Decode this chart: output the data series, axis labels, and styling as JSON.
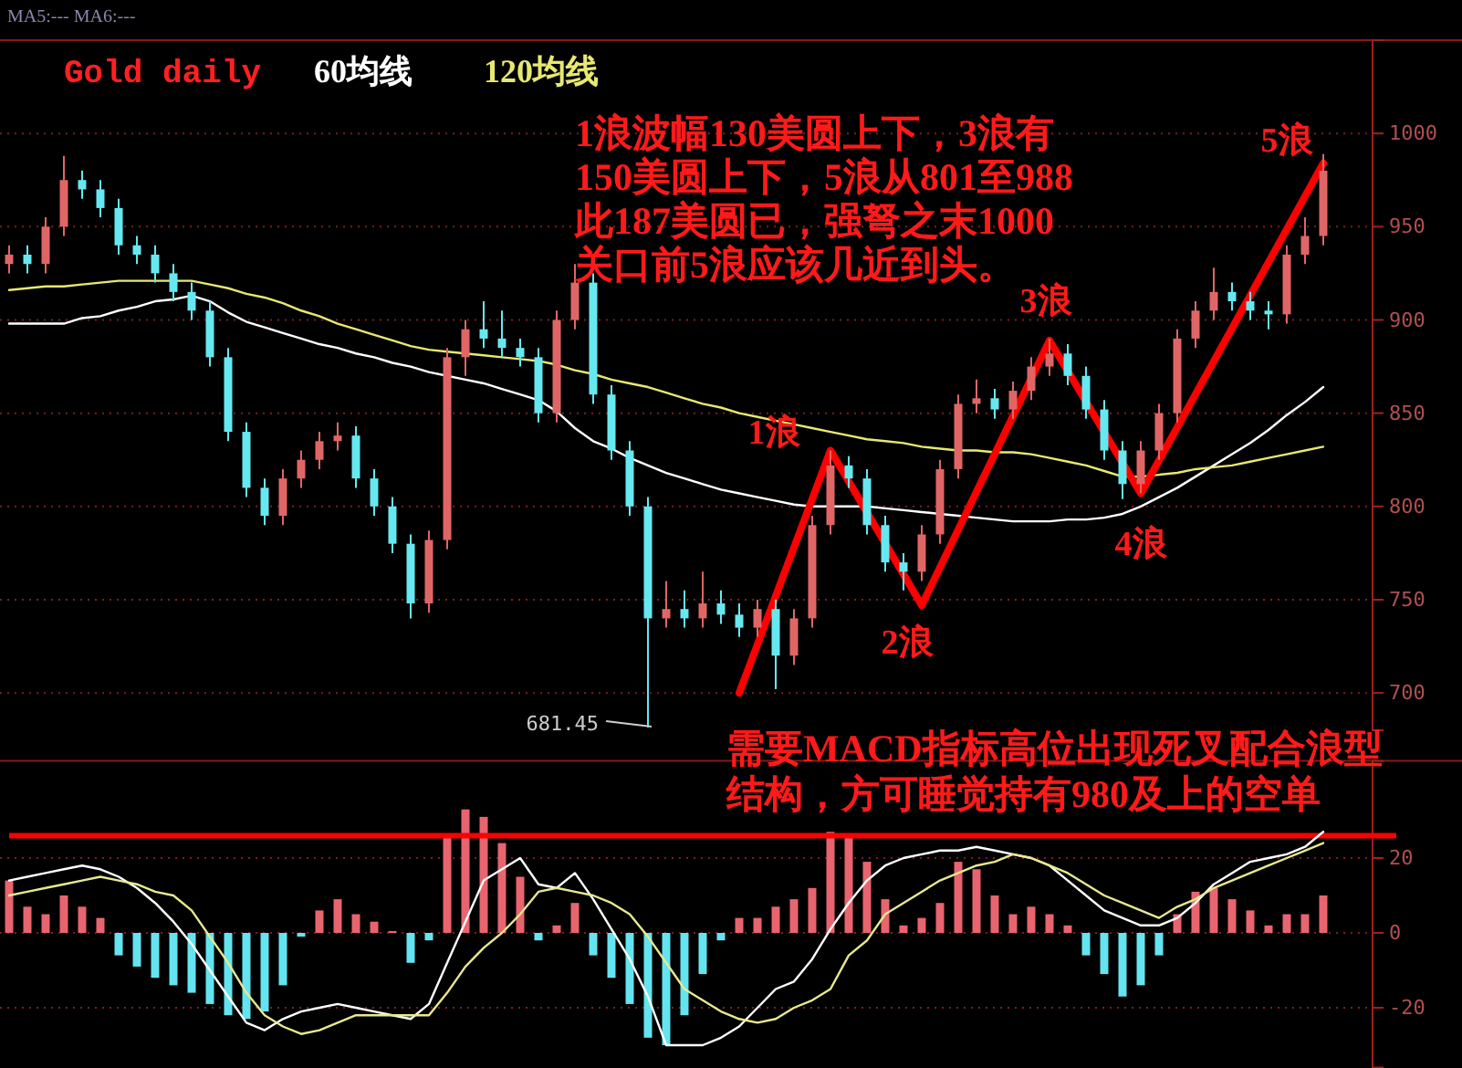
{
  "chart_data": [
    {
      "type": "candlestick",
      "title": "Gold daily",
      "grid": "y",
      "tick_labels": "y",
      "categories": [
        null,
        null,
        null,
        null,
        null,
        null,
        null,
        null,
        null,
        null,
        null,
        null,
        null,
        null,
        null,
        null,
        null,
        null,
        null,
        null,
        null,
        null,
        null,
        null,
        null,
        null,
        null,
        null,
        null,
        null,
        null,
        null,
        null,
        null,
        null,
        null,
        null,
        null,
        null,
        null,
        null,
        null,
        null,
        null,
        null,
        null,
        null,
        null,
        null,
        null,
        null,
        null,
        null,
        null,
        null,
        null,
        null,
        null,
        null,
        null,
        null,
        null,
        null,
        null,
        null,
        null,
        null,
        null,
        null,
        null,
        null,
        null,
        null
      ],
      "ylim": [
        680,
        1050
      ],
      "yticks": [
        700,
        750,
        800,
        850,
        900,
        950,
        1000
      ],
      "ohlc": [
        [
          930,
          940,
          925,
          935
        ],
        [
          935,
          940,
          925,
          930
        ],
        [
          930,
          955,
          925,
          950
        ],
        [
          950,
          988,
          945,
          975
        ],
        [
          975,
          980,
          965,
          970
        ],
        [
          970,
          975,
          955,
          960
        ],
        [
          960,
          965,
          935,
          940
        ],
        [
          940,
          945,
          930,
          935
        ],
        [
          935,
          940,
          920,
          925
        ],
        [
          925,
          930,
          910,
          915
        ],
        [
          915,
          920,
          900,
          905
        ],
        [
          905,
          910,
          875,
          880
        ],
        [
          880,
          885,
          835,
          840
        ],
        [
          840,
          845,
          805,
          810
        ],
        [
          810,
          815,
          790,
          795
        ],
        [
          795,
          820,
          790,
          815
        ],
        [
          815,
          830,
          810,
          825
        ],
        [
          825,
          840,
          820,
          835
        ],
        [
          835,
          845,
          830,
          838
        ],
        [
          838,
          843,
          810,
          815
        ],
        [
          815,
          820,
          795,
          800
        ],
        [
          800,
          805,
          775,
          780
        ],
        [
          780,
          785,
          740,
          748
        ],
        [
          748,
          787,
          743,
          782
        ],
        [
          782,
          885,
          777,
          880
        ],
        [
          880,
          900,
          870,
          895
        ],
        [
          895,
          910,
          885,
          890
        ],
        [
          890,
          905,
          880,
          885
        ],
        [
          885,
          890,
          875,
          880
        ],
        [
          880,
          885,
          845,
          850
        ],
        [
          850,
          905,
          845,
          900
        ],
        [
          900,
          930,
          895,
          920
        ],
        [
          920,
          925,
          855,
          860
        ],
        [
          860,
          865,
          825,
          830
        ],
        [
          830,
          835,
          795,
          800
        ],
        [
          800,
          805,
          681.45,
          740
        ],
        [
          740,
          760,
          735,
          745
        ],
        [
          745,
          755,
          735,
          740
        ],
        [
          740,
          765,
          735,
          748
        ],
        [
          748,
          755,
          737,
          742
        ],
        [
          742,
          748,
          730,
          735
        ],
        [
          735,
          750,
          730,
          745
        ],
        [
          745,
          750,
          702,
          720
        ],
        [
          720,
          745,
          715,
          740
        ],
        [
          740,
          795,
          735,
          790
        ],
        [
          790,
          830,
          785,
          822
        ],
        [
          822,
          827,
          810,
          815
        ],
        [
          815,
          820,
          785,
          790
        ],
        [
          790,
          795,
          765,
          770
        ],
        [
          770,
          775,
          755,
          765
        ],
        [
          765,
          790,
          760,
          785
        ],
        [
          785,
          825,
          780,
          820
        ],
        [
          820,
          860,
          815,
          855
        ],
        [
          855,
          868,
          850,
          858
        ],
        [
          858,
          863,
          847,
          852
        ],
        [
          852,
          867,
          847,
          862
        ],
        [
          862,
          880,
          857,
          875
        ],
        [
          875,
          890,
          870,
          882
        ],
        [
          882,
          887,
          865,
          870
        ],
        [
          870,
          875,
          847,
          852
        ],
        [
          852,
          857,
          825,
          830
        ],
        [
          830,
          835,
          804,
          812
        ],
        [
          812,
          835,
          807,
          830
        ],
        [
          830,
          855,
          825,
          850
        ],
        [
          850,
          895,
          845,
          890
        ],
        [
          890,
          910,
          885,
          905
        ],
        [
          905,
          928,
          900,
          915
        ],
        [
          915,
          920,
          905,
          910
        ],
        [
          910,
          915,
          900,
          905
        ],
        [
          905,
          910,
          895,
          903
        ],
        [
          903,
          940,
          898,
          935
        ],
        [
          935,
          955,
          930,
          945
        ],
        [
          945,
          989,
          940,
          980
        ]
      ],
      "series": [
        {
          "name": "60均线",
          "type": "line",
          "color": "#ffffff",
          "values": [
            898,
            898,
            898,
            898,
            901,
            902,
            905,
            907,
            910,
            911,
            913,
            910,
            904,
            899,
            896,
            893,
            890,
            887,
            885,
            882,
            880,
            877,
            875,
            872,
            870,
            868,
            866,
            863,
            860,
            857,
            851,
            842,
            835,
            831,
            826,
            822,
            818,
            815,
            812,
            809,
            807,
            805,
            803,
            801,
            800,
            800,
            800,
            800,
            799,
            798,
            797,
            796,
            795,
            794,
            793,
            792,
            792,
            792,
            793,
            793,
            794,
            796,
            800,
            805,
            810,
            816,
            822,
            828,
            834,
            841,
            849,
            856,
            864
          ]
        },
        {
          "name": "120均线",
          "type": "line",
          "color": "#e8e870",
          "values": [
            916,
            917,
            918,
            918,
            919,
            920,
            921,
            921,
            921,
            921,
            921,
            919,
            917,
            914,
            912,
            909,
            905,
            902,
            898,
            895,
            892,
            889,
            886,
            884,
            883,
            882,
            881,
            880,
            879,
            878,
            876,
            873,
            871,
            868,
            866,
            864,
            861,
            858,
            855,
            853,
            850,
            848,
            846,
            844,
            842,
            840,
            838,
            836,
            835,
            834,
            832,
            831,
            830,
            830,
            829,
            829,
            828,
            826,
            824,
            822,
            819,
            816,
            816,
            817,
            818,
            820,
            821,
            822,
            824,
            826,
            828,
            830,
            832
          ]
        },
        {
          "type": "line",
          "color": "#ff0000",
          "values": [
            null,
            null,
            null,
            null,
            null,
            null,
            null,
            null,
            null,
            null,
            null,
            null,
            null,
            null,
            null,
            null,
            null,
            null,
            null,
            null,
            null,
            null,
            null,
            null,
            null,
            null,
            null,
            null,
            null,
            null,
            null,
            null,
            null,
            null,
            null,
            null,
            null,
            null,
            null,
            null,
            700,
            null,
            null,
            null,
            null,
            830,
            null,
            null,
            null,
            null,
            747,
            null,
            null,
            null,
            null,
            null,
            null,
            889,
            null,
            null,
            null,
            null,
            807,
            null,
            null,
            null,
            null,
            null,
            null,
            null,
            null,
            null,
            984
          ]
        }
      ],
      "annotations": [
        "MA5:---  MA6:---",
        "1浪波幅130美圆上下，3浪有150美圆上下，5浪从801至988此187美圆已，强弩之末1000关口前5浪应该几近到头。",
        "1浪",
        "2浪",
        "3浪",
        "4浪",
        "5浪",
        "681.45"
      ]
    },
    {
      "type": "bar",
      "grid": "y",
      "tick_labels": "y",
      "categories": [
        null,
        null,
        null,
        null,
        null,
        null,
        null,
        null,
        null,
        null,
        null,
        null,
        null,
        null,
        null,
        null,
        null,
        null,
        null,
        null,
        null,
        null,
        null,
        null,
        null,
        null,
        null,
        null,
        null,
        null,
        null,
        null,
        null,
        null,
        null,
        null,
        null,
        null,
        null,
        null,
        null,
        null,
        null,
        null,
        null,
        null,
        null,
        null,
        null,
        null,
        null,
        null,
        null,
        null,
        null,
        null,
        null,
        null,
        null,
        null,
        null,
        null,
        null,
        null,
        null,
        null,
        null,
        null,
        null,
        null,
        null,
        null,
        null
      ],
      "ylim": [
        -36,
        46
      ],
      "yticks": [
        -20,
        0,
        20
      ],
      "series": [
        {
          "type": "bar",
          "color": "#e8646e",
          "values": [
            14,
            7,
            5,
            10,
            7,
            4,
            null,
            null,
            null,
            null,
            null,
            null,
            null,
            null,
            null,
            null,
            null,
            6,
            9,
            5,
            3,
            0.5,
            null,
            null,
            26,
            33,
            31,
            24,
            15,
            null,
            2,
            8,
            null,
            null,
            null,
            null,
            null,
            null,
            null,
            null,
            4,
            4,
            7,
            9,
            12,
            27,
            26,
            19,
            9,
            2,
            4,
            8,
            19,
            17,
            10,
            5,
            7,
            5,
            2,
            null,
            null,
            null,
            null,
            null,
            5,
            11,
            12,
            9,
            6,
            2,
            5,
            5,
            10
          ]
        },
        {
          "type": "bar",
          "color": "#64e4f0",
          "values": [
            null,
            null,
            null,
            null,
            null,
            null,
            -6,
            -9,
            -12,
            -14,
            -16,
            -19,
            -22,
            -23,
            -21,
            -14,
            -1,
            null,
            null,
            null,
            null,
            null,
            -8,
            -2,
            null,
            null,
            null,
            null,
            null,
            -2,
            null,
            null,
            -6,
            -12,
            -19,
            -28,
            -30,
            -22,
            -11,
            -2,
            null,
            null,
            null,
            null,
            null,
            null,
            null,
            null,
            null,
            null,
            null,
            null,
            null,
            null,
            null,
            null,
            null,
            null,
            null,
            -6,
            -11,
            -17,
            -14,
            -6,
            null,
            null,
            null,
            null,
            null,
            null,
            null,
            null,
            null
          ]
        },
        {
          "type": "line",
          "color": "#ffffff",
          "values": [
            14,
            15,
            16,
            17,
            18,
            17,
            15,
            12,
            8,
            3,
            -3,
            -10,
            -17,
            -24,
            -26,
            -23,
            -21,
            -20,
            -19,
            -20,
            -21,
            -22,
            -23,
            -19,
            -8,
            3,
            14,
            17,
            20,
            13,
            12,
            16,
            9,
            1,
            -7,
            -17,
            -30,
            -30,
            -30,
            -28,
            -25,
            -20,
            -15,
            -13,
            -7,
            1,
            8,
            14,
            18,
            20,
            21,
            22,
            22,
            23,
            22,
            21,
            20,
            18,
            14,
            10,
            6,
            4,
            2,
            2,
            4,
            8,
            13,
            16,
            19,
            20,
            21,
            23,
            27
          ]
        },
        {
          "type": "line",
          "color": "#e8e890",
          "values": [
            10,
            11,
            12,
            13,
            14,
            15,
            14,
            13,
            11,
            10,
            6,
            -1,
            -8,
            -16,
            -22,
            -25,
            -27,
            -26,
            -24,
            -22,
            -22,
            -22,
            -22,
            -22,
            -16,
            -9,
            -4,
            0,
            5,
            11,
            12,
            11,
            10,
            8,
            5,
            -1,
            -8,
            -15,
            -18,
            -21,
            -23,
            -24,
            -23,
            -20,
            -18,
            -15,
            -6,
            -2,
            5,
            8,
            11,
            14,
            16,
            18,
            19,
            21,
            20,
            18,
            16,
            13,
            10,
            8,
            6,
            4,
            7,
            9,
            12,
            14,
            16,
            18,
            20,
            22,
            24
          ]
        }
      ],
      "ref_lines": [
        {
          "axis": "y",
          "value": 26,
          "color": "#ff0000"
        }
      ],
      "annotations": [
        "需要MACD指标高位出现死叉配合浪型结构，方可睡觉持有980及上的空单"
      ]
    }
  ]
}
